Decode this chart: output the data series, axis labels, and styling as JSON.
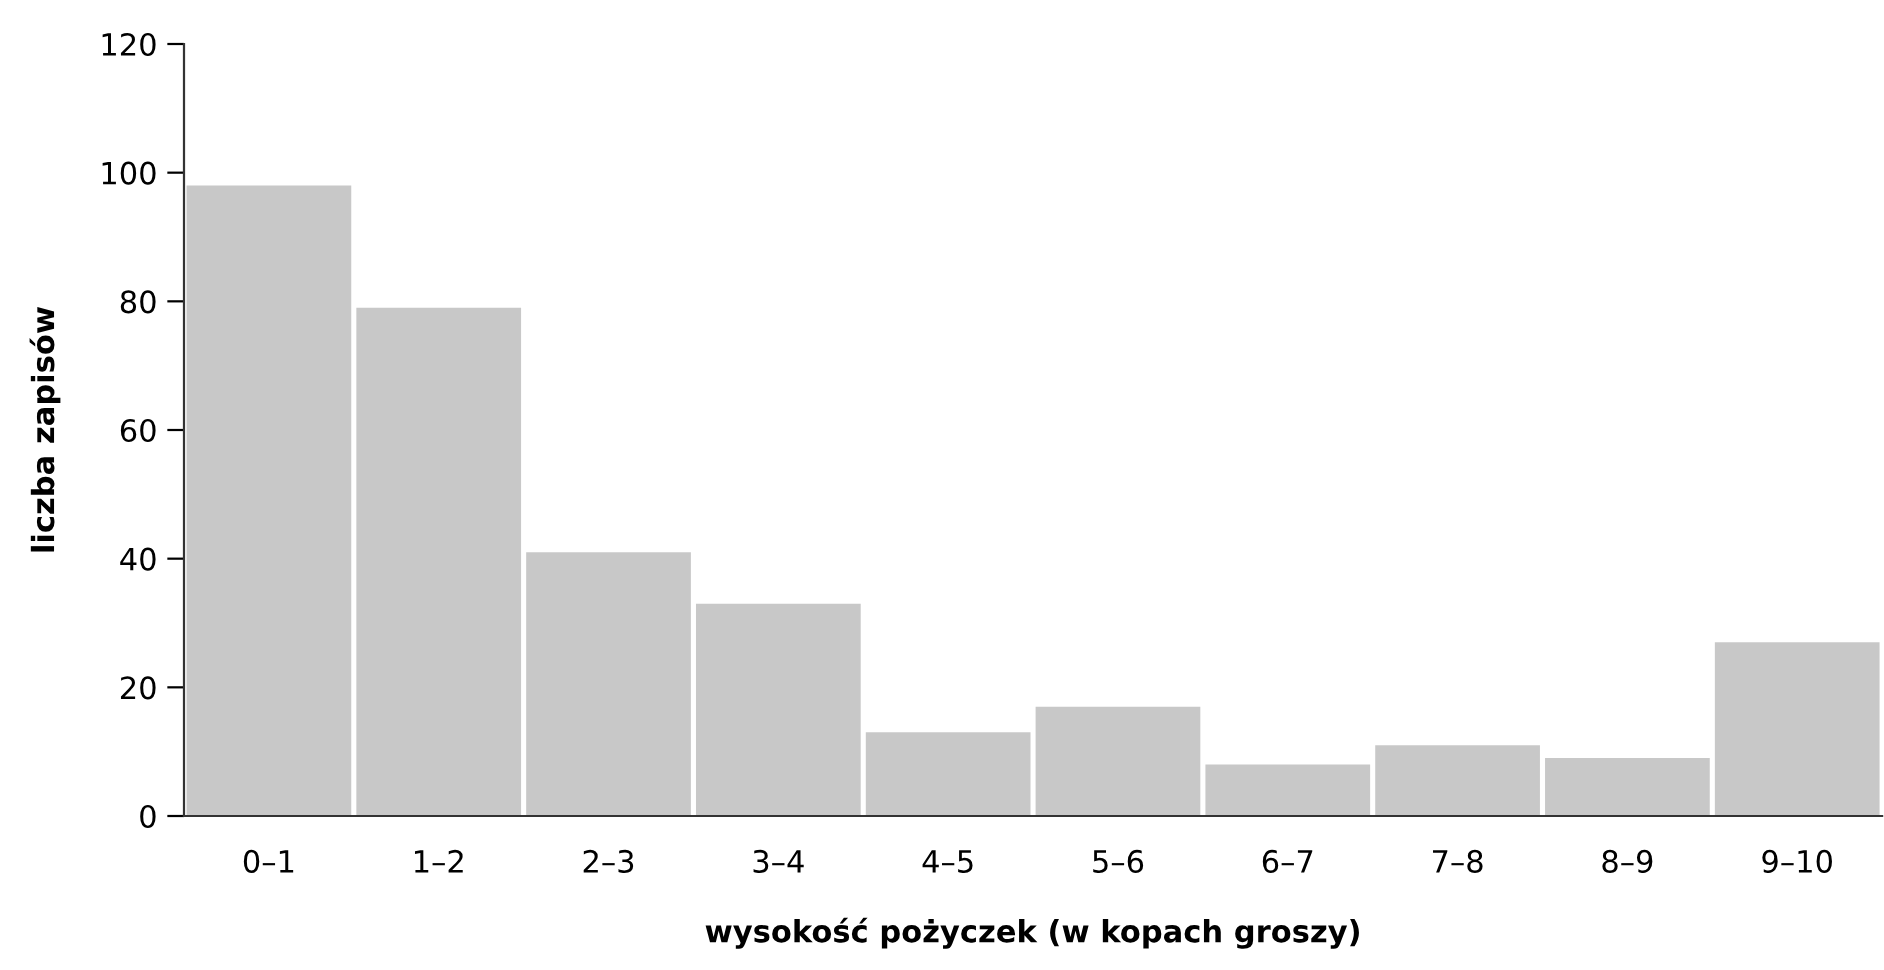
{
  "chart_data": {
    "type": "bar",
    "categories": [
      "0–1",
      "1–2",
      "2–3",
      "3–4",
      "4–5",
      "5–6",
      "6–7",
      "7–8",
      "8–9",
      "9–10"
    ],
    "values": [
      98,
      79,
      41,
      33,
      13,
      17,
      8,
      11,
      9,
      27
    ],
    "color": "#c8c8c8",
    "xlabel": "wysokość pożyczek (w kopach groszy)",
    "ylabel": "liczba zapisów",
    "ylim": [
      0,
      120
    ],
    "yticks": [
      0,
      20,
      40,
      60,
      80,
      100,
      120
    ],
    "grid": false,
    "legend": false
  }
}
